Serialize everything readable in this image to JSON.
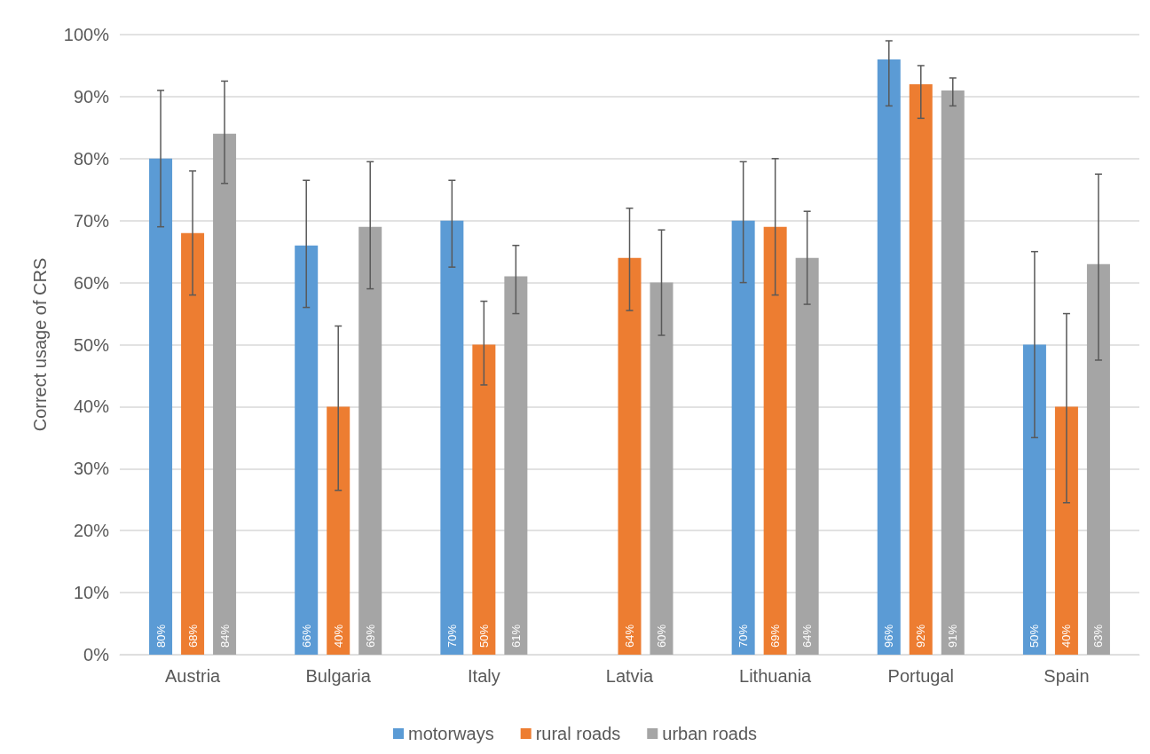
{
  "chart_data": {
    "type": "bar",
    "ylabel": "Correct usage of CRS",
    "categories": [
      "Austria",
      "Bulgaria",
      "Italy",
      "Latvia",
      "Lithuania",
      "Portugal",
      "Spain"
    ],
    "series": [
      {
        "name": "motorways",
        "color": "#5b9bd5",
        "values": [
          80,
          66,
          70,
          null,
          70,
          96,
          50
        ],
        "value_labels": [
          "80%",
          "66%",
          "70%",
          null,
          "70%",
          "96%",
          "50%"
        ],
        "errors": [
          [
            69,
            91
          ],
          [
            56,
            76.5
          ],
          [
            62.5,
            76.5
          ],
          null,
          [
            60,
            79.5
          ],
          [
            88.5,
            99
          ],
          [
            35,
            65
          ]
        ]
      },
      {
        "name": "rural roads",
        "color": "#ed7d31",
        "values": [
          68,
          40,
          50,
          64,
          69,
          92,
          40
        ],
        "value_labels": [
          "68%",
          "40%",
          "50%",
          "64%",
          "69%",
          "92%",
          "40%"
        ],
        "errors": [
          [
            58,
            78
          ],
          [
            26.5,
            53
          ],
          [
            43.5,
            57
          ],
          [
            55.5,
            72
          ],
          [
            58,
            80
          ],
          [
            86.5,
            95
          ],
          [
            24.5,
            55
          ]
        ]
      },
      {
        "name": "urban roads",
        "color": "#a5a5a5",
        "values": [
          84,
          69,
          61,
          60,
          64,
          91,
          63
        ],
        "value_labels": [
          "84%",
          "69%",
          "61%",
          "60%",
          "64%",
          "91%",
          "63%"
        ],
        "errors": [
          [
            76,
            92.5
          ],
          [
            59,
            79.5
          ],
          [
            55,
            66
          ],
          [
            51.5,
            68.5
          ],
          [
            56.5,
            71.5
          ],
          [
            88.5,
            93
          ],
          [
            47.5,
            77.5
          ]
        ]
      }
    ],
    "ylim": [
      0,
      100
    ],
    "yticks": [
      {
        "value": 0,
        "label": "0%"
      },
      {
        "value": 10,
        "label": "10%"
      },
      {
        "value": 20,
        "label": "20%"
      },
      {
        "value": 30,
        "label": "30%"
      },
      {
        "value": 40,
        "label": "40%"
      },
      {
        "value": 50,
        "label": "50%"
      },
      {
        "value": 60,
        "label": "60%"
      },
      {
        "value": 70,
        "label": "70%"
      },
      {
        "value": 80,
        "label": "80%"
      },
      {
        "value": 90,
        "label": "90%"
      },
      {
        "value": 100,
        "label": "100%"
      }
    ],
    "grid": "y",
    "legend": "bottom"
  }
}
